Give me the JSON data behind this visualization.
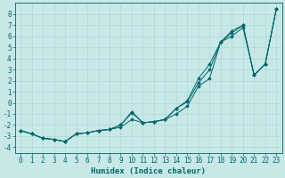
{
  "xlabel": "Humidex (Indice chaleur)",
  "background_color": "#c8e8e8",
  "grid_color": "#b0d8d8",
  "line_color": "#006868",
  "xlim": [
    -0.5,
    23.5
  ],
  "ylim": [
    -4.5,
    9.0
  ],
  "xticks": [
    0,
    1,
    2,
    3,
    4,
    5,
    6,
    7,
    8,
    9,
    10,
    11,
    12,
    13,
    14,
    15,
    16,
    17,
    18,
    19,
    20,
    21,
    22,
    23
  ],
  "yticks": [
    -4,
    -3,
    -2,
    -1,
    0,
    1,
    2,
    3,
    4,
    5,
    6,
    7,
    8
  ],
  "line1": [
    -2.5,
    -2.8,
    -3.2,
    -3.3,
    -3.5,
    -2.8,
    -2.7,
    -2.5,
    -2.4,
    -2.2,
    -1.5,
    -1.8,
    -1.7,
    -1.5,
    -1.0,
    -0.3,
    1.5,
    2.2,
    5.5,
    6.5,
    7.0,
    2.5,
    3.5,
    8.5
  ],
  "line2": [
    -2.5,
    -2.8,
    -3.2,
    -3.3,
    -3.5,
    -2.8,
    -2.7,
    -2.5,
    -2.4,
    -2.0,
    -0.8,
    -1.8,
    -1.7,
    -1.5,
    -0.5,
    0.2,
    2.2,
    3.5,
    5.5,
    6.0,
    6.8,
    2.5,
    3.5,
    8.5
  ],
  "line3": [
    -2.5,
    -2.8,
    -3.2,
    -3.3,
    -3.5,
    -2.8,
    -2.7,
    -2.5,
    -2.4,
    -2.0,
    -0.9,
    -1.8,
    -1.7,
    -1.5,
    -0.5,
    0.1,
    1.8,
    3.0,
    5.5,
    6.3,
    7.0,
    2.5,
    3.5,
    8.5
  ],
  "tick_fontsize": 5.5,
  "xlabel_fontsize": 6.5
}
